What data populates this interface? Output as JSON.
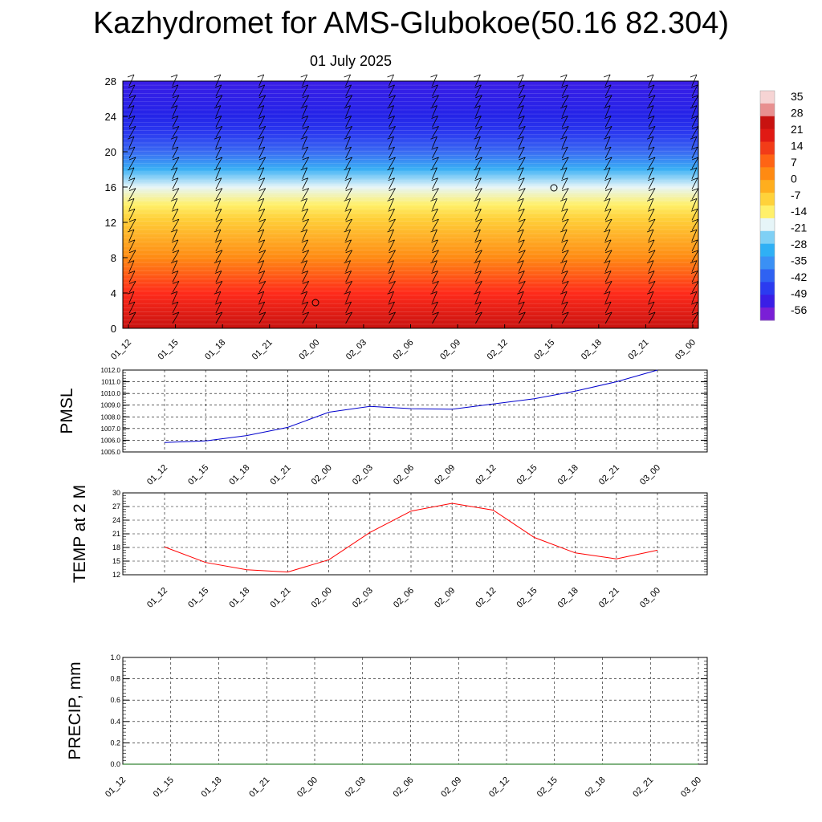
{
  "title": "Kazhydromet for AMS-Glubokoe(50.16 82.304)",
  "subtitle": "01 July 2025",
  "chart_data": [
    {
      "type": "heatmap",
      "description_role": "vertical time-section of temperature with wind barbs",
      "x_ticks": [
        "01_12",
        "01_15",
        "01_18",
        "01_21",
        "02_00",
        "02_03",
        "02_06",
        "02_09",
        "02_12",
        "02_15",
        "02_18",
        "02_21",
        "03_00"
      ],
      "y_ticks": [
        0,
        4,
        8,
        12,
        16,
        20,
        24,
        28
      ],
      "ylim": [
        0,
        28
      ],
      "colorbar_labels": [
        35,
        28,
        21,
        14,
        7,
        0,
        -7,
        -14,
        -21,
        -28,
        -35,
        -42,
        -49,
        -56
      ],
      "color_scale": [
        "#7a1fd6",
        "#3a1ee6",
        "#2b3bf0",
        "#2f62f2",
        "#3a90f5",
        "#2fb0f5",
        "#7fd0f5",
        "#e6f5f8",
        "#fff06a",
        "#ffd23a",
        "#ffae1e",
        "#ff8a12",
        "#ff6414",
        "#f23c18",
        "#e01a14",
        "#c81210",
        "#e89090",
        "#f6d4d4"
      ],
      "temperature_profile": [
        {
          "height": 0,
          "value": 30
        },
        {
          "height": 4,
          "value": 22
        },
        {
          "height": 8,
          "value": 10
        },
        {
          "height": 12.5,
          "value": -10
        },
        {
          "height": 14,
          "value": -20
        },
        {
          "height": 16,
          "value": -32
        },
        {
          "height": 18,
          "value": -42
        },
        {
          "height": 20,
          "value": -50
        },
        {
          "height": 22,
          "value": -52
        },
        {
          "height": 24,
          "value": -55
        },
        {
          "height": 28,
          "value": -58
        }
      ]
    },
    {
      "type": "line",
      "ylabel": "PMSL",
      "x": [
        "01_12",
        "01_15",
        "01_18",
        "01_21",
        "02_00",
        "02_03",
        "02_06",
        "02_09",
        "02_12",
        "02_15",
        "02_18",
        "02_21",
        "03_00"
      ],
      "y": [
        1005.8,
        1005.95,
        1006.4,
        1007.1,
        1008.4,
        1008.9,
        1008.7,
        1008.65,
        1009.1,
        1009.55,
        1010.2,
        1011.0,
        1012.0
      ],
      "ylim": [
        1005.0,
        1012.0
      ],
      "yticks": [
        "1005.0",
        "1006.0",
        "1007.0",
        "1008.0",
        "1009.0",
        "1010.0",
        "1011.0",
        "1012.0"
      ],
      "color": "#0000cc",
      "grid": true
    },
    {
      "type": "line",
      "ylabel": "TEMP at 2 M",
      "x": [
        "01_12",
        "01_15",
        "01_18",
        "01_21",
        "02_00",
        "02_03",
        "02_06",
        "02_09",
        "02_12",
        "02_15",
        "02_18",
        "02_21",
        "03_00"
      ],
      "y": [
        18.1,
        14.7,
        13.1,
        12.6,
        15.3,
        21.3,
        26.0,
        27.7,
        26.2,
        20.2,
        16.8,
        15.5,
        17.4
      ],
      "ylim": [
        12,
        30
      ],
      "yticks": [
        "12",
        "15",
        "18",
        "21",
        "24",
        "27",
        "30"
      ],
      "color": "#ff0000",
      "grid": true
    },
    {
      "type": "line",
      "ylabel": "PRECIP, mm",
      "x": [
        "01_12",
        "01_15",
        "01_18",
        "01_21",
        "02_00",
        "02_03",
        "02_06",
        "02_09",
        "02_12",
        "02_15",
        "02_18",
        "02_21",
        "03_00"
      ],
      "y": [
        0,
        0,
        0,
        0,
        0,
        0,
        0,
        0,
        0,
        0,
        0,
        0,
        0
      ],
      "ylim": [
        0,
        1
      ],
      "yticks": [
        "0.0",
        "0.2",
        "0.4",
        "0.6",
        "0.8",
        "1.0"
      ],
      "color": "#006400",
      "grid": true
    }
  ]
}
